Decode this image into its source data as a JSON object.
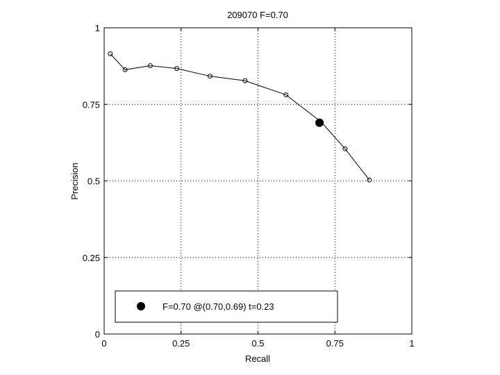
{
  "chart_data": {
    "type": "line",
    "title": "209070 F=0.70",
    "xlabel": "Recall",
    "ylabel": "Precision",
    "xlim": [
      0,
      1
    ],
    "ylim": [
      0,
      1
    ],
    "grid": true,
    "x_ticks": [
      "0",
      "0.25",
      "0.5",
      "0.75",
      "1"
    ],
    "y_ticks": [
      "0",
      "0.25",
      "0.5",
      "0.75",
      "1"
    ],
    "series": [
      {
        "marker": "open-circle",
        "points": [
          {
            "x": 0.02,
            "y": 0.915
          },
          {
            "x": 0.068,
            "y": 0.863
          },
          {
            "x": 0.15,
            "y": 0.876
          },
          {
            "x": 0.236,
            "y": 0.867
          },
          {
            "x": 0.344,
            "y": 0.842
          },
          {
            "x": 0.458,
            "y": 0.827
          },
          {
            "x": 0.591,
            "y": 0.781
          },
          {
            "x": 0.705,
            "y": 0.693
          },
          {
            "x": 0.783,
            "y": 0.605
          },
          {
            "x": 0.862,
            "y": 0.503
          }
        ]
      }
    ],
    "highlight": {
      "x": 0.7,
      "y": 0.69,
      "marker": "filled-circle"
    },
    "legend": {
      "text": "F=0.70 @(0.70,0.69) t=0.23",
      "placement": "bottom-left"
    }
  }
}
